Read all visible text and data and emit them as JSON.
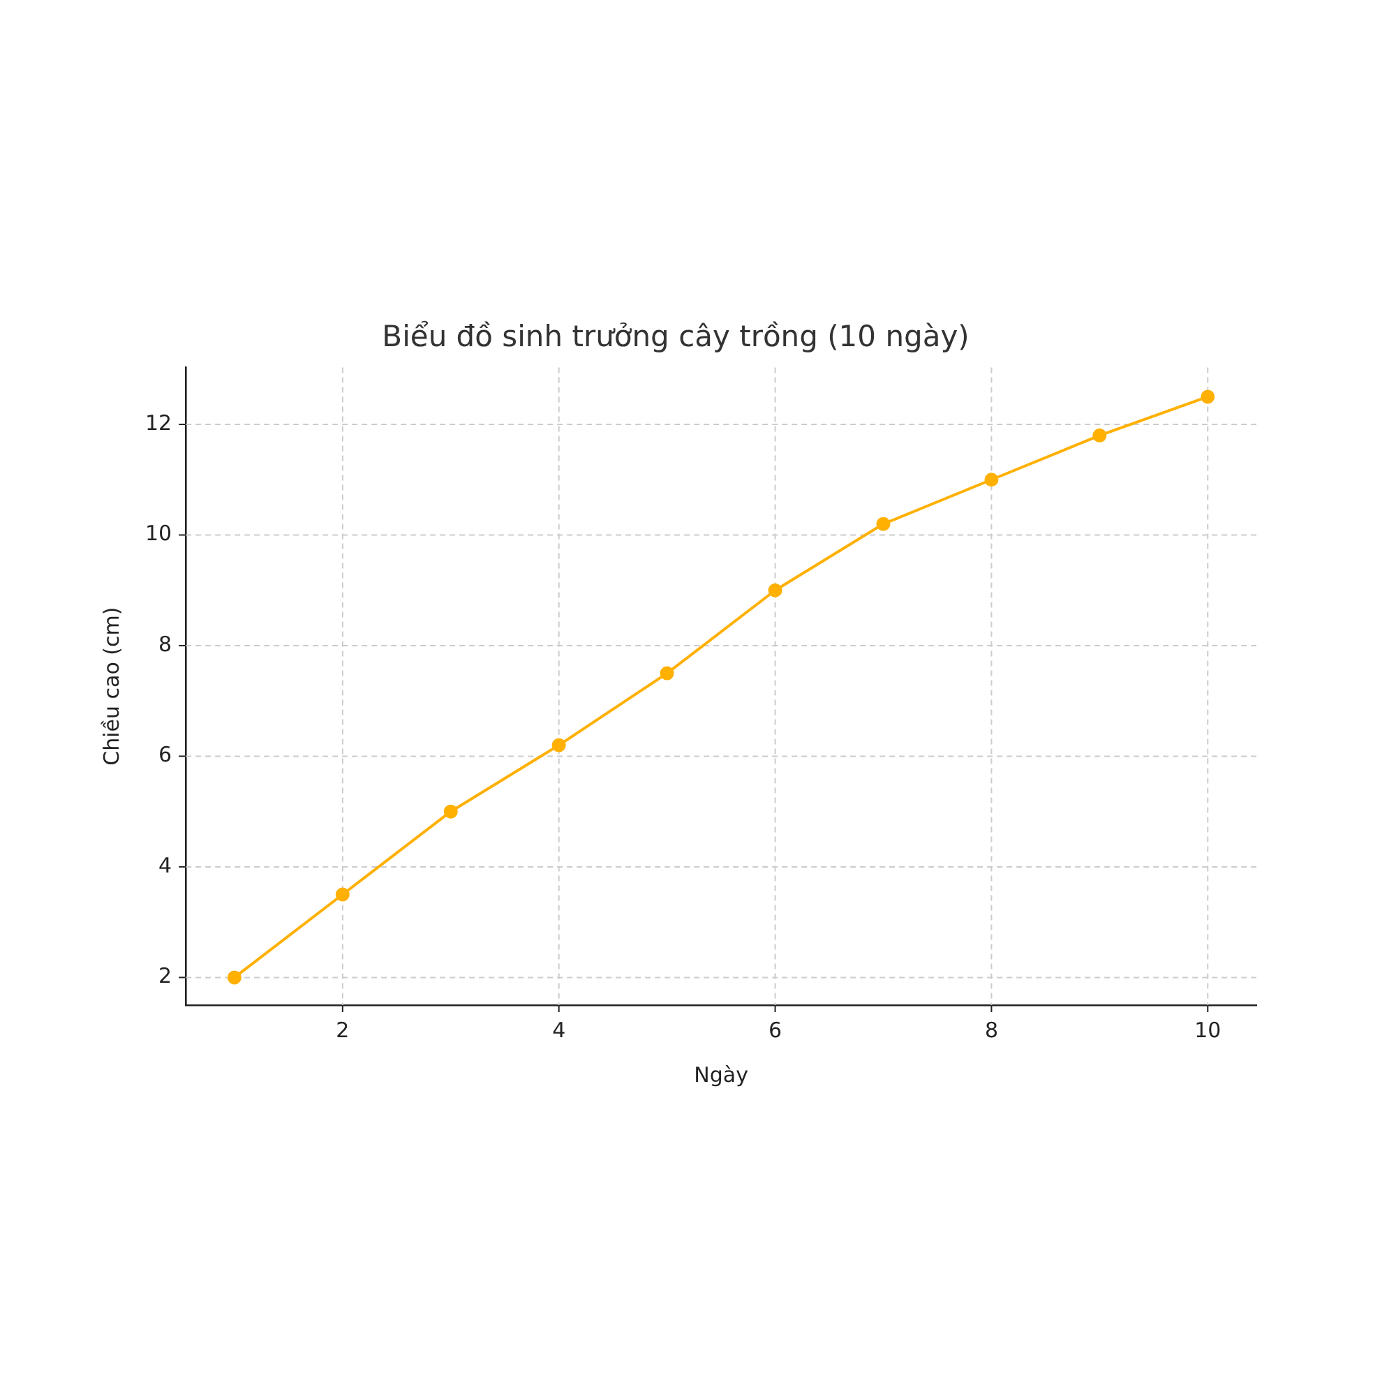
{
  "chart_data": {
    "type": "line",
    "title": "Biểu đồ sinh trưởng cây trồng (10 ngày)",
    "xlabel": "Ngày",
    "ylabel": "Chiều cao (cm)",
    "x": [
      1,
      2,
      3,
      4,
      5,
      6,
      7,
      8,
      9,
      10
    ],
    "series": [
      {
        "color": "#ffb000",
        "values": [
          2,
          3.5,
          5,
          6.2,
          7.5,
          9,
          10.2,
          11,
          11.8,
          12.5
        ]
      }
    ],
    "xlim": [
      0.55,
      10.45
    ],
    "xticks": [
      2,
      4,
      6,
      8,
      10
    ],
    "ylim": [
      1.5,
      13.03
    ],
    "yticks": [
      2,
      4,
      6,
      8,
      10,
      12
    ],
    "grid": true,
    "legend": false,
    "marker": "circle",
    "line_style": "solid"
  }
}
